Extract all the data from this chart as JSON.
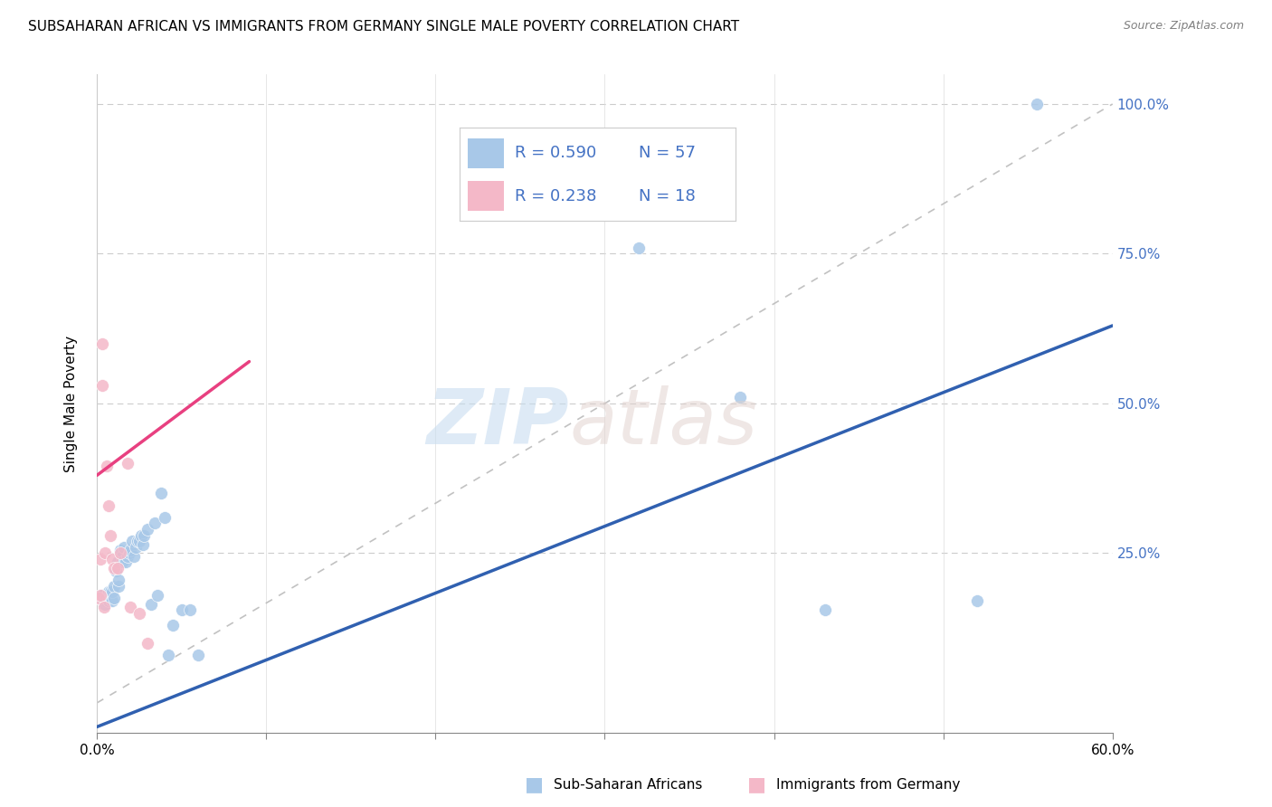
{
  "title": "SUBSAHARAN AFRICAN VS IMMIGRANTS FROM GERMANY SINGLE MALE POVERTY CORRELATION CHART",
  "source": "Source: ZipAtlas.com",
  "ylabel": "Single Male Poverty",
  "legend1_r": "R = 0.590",
  "legend1_n": "N = 57",
  "legend2_r": "R = 0.238",
  "legend2_n": "N = 18",
  "blue_color": "#a8c8e8",
  "pink_color": "#f4b8c8",
  "blue_line_color": "#3060b0",
  "pink_line_color": "#e84080",
  "diagonal_color": "#cccccc",
  "label_color": "#4472c4",
  "xlim": [
    0.0,
    0.6
  ],
  "ylim": [
    -0.05,
    1.05
  ],
  "blue_line_x": [
    0.0,
    0.6
  ],
  "blue_line_y": [
    -0.04,
    0.63
  ],
  "pink_line_x": [
    0.0,
    0.09
  ],
  "pink_line_y": [
    0.38,
    0.57
  ],
  "blue_scatter_x": [
    0.001,
    0.002,
    0.002,
    0.003,
    0.003,
    0.004,
    0.004,
    0.005,
    0.005,
    0.005,
    0.006,
    0.006,
    0.007,
    0.007,
    0.007,
    0.008,
    0.008,
    0.009,
    0.009,
    0.01,
    0.01,
    0.011,
    0.012,
    0.013,
    0.013,
    0.014,
    0.015,
    0.015,
    0.016,
    0.017,
    0.018,
    0.019,
    0.02,
    0.021,
    0.022,
    0.023,
    0.024,
    0.025,
    0.026,
    0.027,
    0.028,
    0.03,
    0.032,
    0.034,
    0.036,
    0.038,
    0.04,
    0.042,
    0.045,
    0.05,
    0.055,
    0.06,
    0.32,
    0.38,
    0.43,
    0.52,
    0.555
  ],
  "blue_scatter_y": [
    0.175,
    0.18,
    0.175,
    0.175,
    0.18,
    0.165,
    0.17,
    0.175,
    0.17,
    0.165,
    0.18,
    0.175,
    0.175,
    0.17,
    0.185,
    0.175,
    0.185,
    0.17,
    0.185,
    0.195,
    0.175,
    0.22,
    0.235,
    0.195,
    0.205,
    0.255,
    0.245,
    0.235,
    0.26,
    0.235,
    0.245,
    0.25,
    0.255,
    0.27,
    0.245,
    0.26,
    0.27,
    0.27,
    0.28,
    0.265,
    0.28,
    0.29,
    0.165,
    0.3,
    0.18,
    0.35,
    0.31,
    0.08,
    0.13,
    0.155,
    0.155,
    0.08,
    0.76,
    0.51,
    0.155,
    0.17,
    1.0
  ],
  "pink_scatter_x": [
    0.001,
    0.002,
    0.002,
    0.003,
    0.003,
    0.004,
    0.005,
    0.006,
    0.007,
    0.008,
    0.009,
    0.01,
    0.012,
    0.014,
    0.018,
    0.02,
    0.025,
    0.03
  ],
  "pink_scatter_y": [
    0.175,
    0.18,
    0.24,
    0.6,
    0.53,
    0.16,
    0.25,
    0.395,
    0.33,
    0.28,
    0.24,
    0.225,
    0.225,
    0.25,
    0.4,
    0.16,
    0.15,
    0.1
  ]
}
